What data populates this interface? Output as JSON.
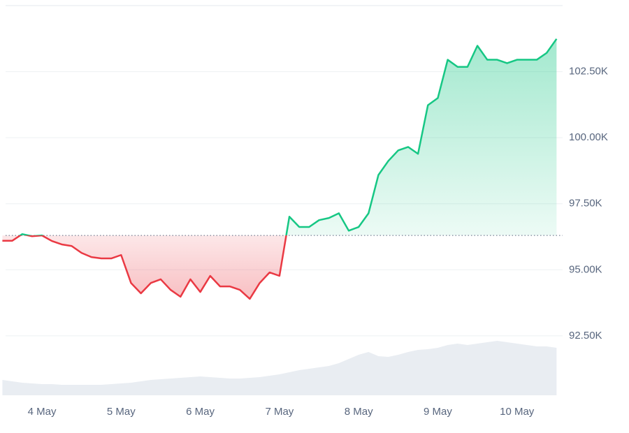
{
  "chart_data": {
    "type": "line",
    "categories": [
      null,
      null,
      null,
      null,
      "4 May",
      null,
      null,
      null,
      null,
      null,
      null,
      null,
      "5 May",
      null,
      null,
      null,
      null,
      null,
      null,
      null,
      "6 May",
      null,
      null,
      null,
      null,
      null,
      null,
      null,
      "7 May",
      null,
      null,
      null,
      null,
      null,
      null,
      null,
      "8 May",
      null,
      null,
      null,
      null,
      null,
      null,
      null,
      "9 May",
      null,
      null,
      null,
      null,
      null,
      null,
      null,
      "10 May",
      null,
      null,
      null,
      null
    ],
    "values": [
      96100,
      96100,
      96350,
      96270,
      96300,
      96090,
      95960,
      95900,
      95640,
      95480,
      95430,
      95430,
      95560,
      94500,
      94110,
      94500,
      94640,
      94240,
      93980,
      94640,
      94160,
      94770,
      94370,
      94370,
      94240,
      93900,
      94500,
      94900,
      94770,
      97010,
      96620,
      96620,
      96880,
      96960,
      97140,
      96480,
      96620,
      97140,
      98590,
      99120,
      99520,
      99650,
      99390,
      101230,
      101500,
      102950,
      102680,
      102680,
      103480,
      102950,
      102950,
      102820,
      102950,
      102950,
      102950,
      103210,
      103740
    ],
    "baseline": 96300,
    "up_color": "#16c784",
    "down_color": "#ea3943",
    "volume": [
      22,
      20,
      18,
      17,
      16,
      16,
      15,
      15,
      15,
      15,
      15,
      16,
      17,
      18,
      20,
      22,
      23,
      24,
      25,
      26,
      27,
      26,
      25,
      24,
      24,
      25,
      26,
      28,
      30,
      33,
      36,
      38,
      40,
      42,
      46,
      52,
      58,
      62,
      56,
      55,
      58,
      62,
      65,
      66,
      68,
      72,
      74,
      72,
      74,
      76,
      78,
      76,
      74,
      72,
      70,
      70,
      68
    ],
    "volume_color": "#e9edf2",
    "volume_ylim": [
      0,
      100
    ],
    "ylim": [
      90250,
      105000
    ],
    "yticks": [
      {
        "value": 92500,
        "label": "92.50K"
      },
      {
        "value": 95000,
        "label": "95.00K"
      },
      {
        "value": 97500,
        "label": "97.50K"
      },
      {
        "value": 100000,
        "label": "100.00K"
      },
      {
        "value": 102500,
        "label": "102.50K"
      }
    ],
    "grid": true
  }
}
